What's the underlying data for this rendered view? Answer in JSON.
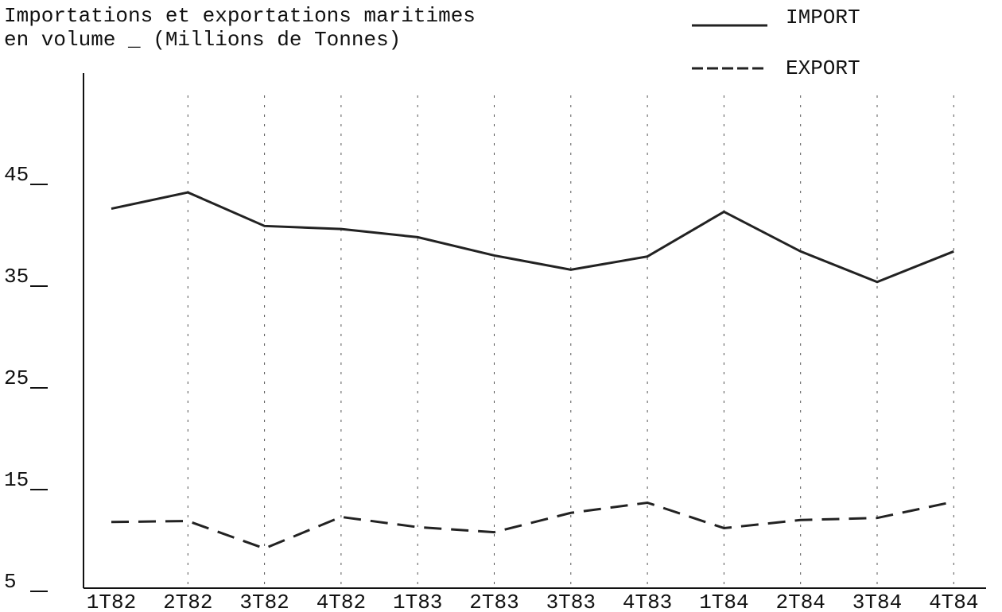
{
  "chart_data": {
    "type": "line",
    "title": [
      "Importations et exportations maritimes",
      "en volume _ (Millions de Tonnes)"
    ],
    "categories": [
      "1T82",
      "2T82",
      "3T82",
      "4T82",
      "1T83",
      "2T83",
      "3T83",
      "4T83",
      "1T84",
      "2T84",
      "3T84",
      "4T84"
    ],
    "series": [
      {
        "name": "IMPORT",
        "color": "#222222",
        "dash": false,
        "values": [
          42.3,
          43.9,
          40.6,
          40.3,
          39.5,
          37.7,
          36.3,
          37.6,
          42.0,
          38.1,
          35.1,
          38.1
        ]
      },
      {
        "name": "EXPORT",
        "color": "#222222",
        "dash": true,
        "values": [
          11.5,
          11.6,
          8.9,
          12.0,
          11.0,
          10.5,
          12.4,
          13.4,
          10.9,
          11.7,
          11.9,
          13.5
        ]
      }
    ],
    "ylim": [
      5,
      55
    ],
    "yticks": [
      5,
      15,
      25,
      35,
      45
    ],
    "grid": true,
    "legend": "top-right"
  }
}
